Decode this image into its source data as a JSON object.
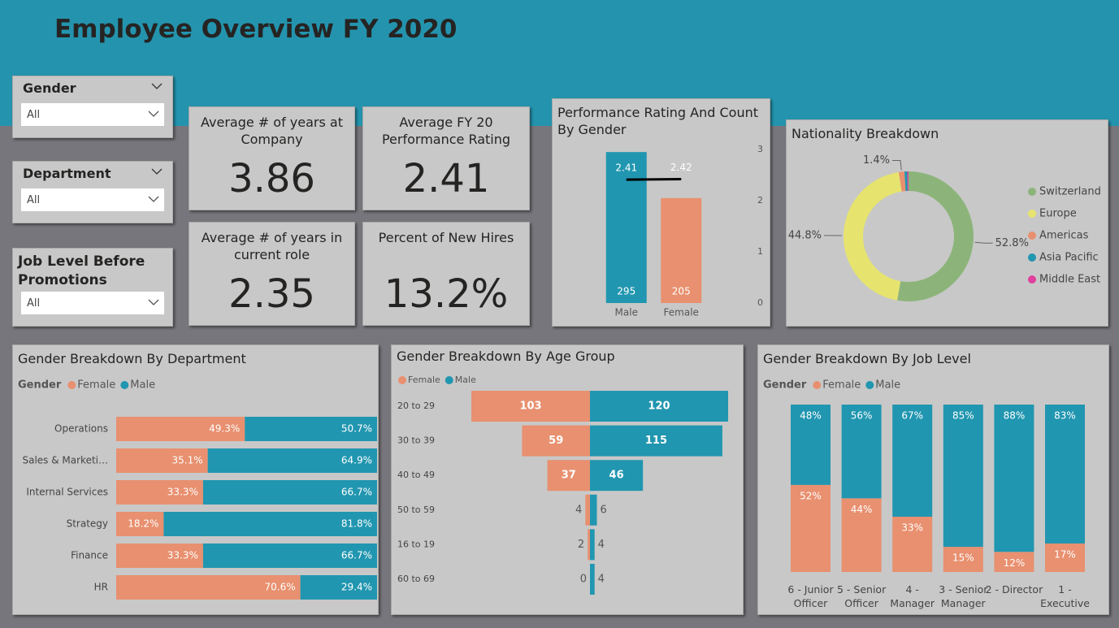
{
  "header": {
    "title": "Employee Overview FY 2020"
  },
  "slicers": [
    {
      "label": "Gender",
      "value": "All"
    },
    {
      "label": "Department",
      "value": "All"
    },
    {
      "label": "Job Level Before Promotions",
      "value": "All"
    }
  ],
  "kpis": [
    {
      "label": "Average # of years at Company",
      "value": "3.86"
    },
    {
      "label": "Average FY 20 Performance Rating",
      "value": "2.41"
    },
    {
      "label": "Average # of years in current role",
      "value": "2.35"
    },
    {
      "label": "Percent of New Hires",
      "value": "13.2%"
    }
  ],
  "chart_data": [
    {
      "type": "combo",
      "title": "Performance Rating And Count By Gender",
      "categories": [
        "Male",
        "Female"
      ],
      "series": [
        {
          "type": "bar",
          "color": "#2196b0",
          "values": [
            295,
            205
          ]
        },
        {
          "type": "line",
          "color": "#000000",
          "axis": "y2",
          "values": [
            2.41,
            2.42
          ]
        }
      ],
      "ylim": [
        0,
        300
      ],
      "y2lim": [
        0,
        3
      ],
      "y2ticks": [
        0,
        1,
        2,
        3
      ]
    },
    {
      "type": "donut",
      "title": "Nationality Breakdown",
      "categories": [
        "Switzerland",
        "Europe",
        "Americas",
        "Asia Pacific",
        "Middle East"
      ],
      "colors": [
        "#8cb47a",
        "#e6e46e",
        "#e8906f",
        "#2196b0",
        "#e0409e"
      ],
      "values": [
        52.8,
        44.8,
        1.4,
        0.7,
        0.3
      ],
      "value_labels": [
        "52.8%",
        "44.8%",
        "1.4%",
        null,
        null
      ]
    },
    {
      "type": "bar",
      "orientation": "horizontal",
      "stacked": true,
      "title": "Gender Breakdown By Department",
      "legend_title": "Gender",
      "categories": [
        "Operations",
        "Sales & Marketi…",
        "Internal Services",
        "Strategy",
        "Finance",
        "HR"
      ],
      "series": [
        {
          "name": "Female",
          "color": "#e8906f",
          "values": [
            49.3,
            35.1,
            33.3,
            18.2,
            33.3,
            70.6
          ],
          "value_labels": [
            "49.3%",
            "35.1%",
            "33.3%",
            "18.2%",
            "33.3%",
            "70.6%"
          ]
        },
        {
          "name": "Male",
          "color": "#2196b0",
          "values": [
            50.7,
            64.9,
            66.7,
            81.8,
            66.7,
            29.4
          ],
          "value_labels": [
            "50.7%",
            "64.9%",
            "66.7%",
            "81.8%",
            "66.7%",
            "29.4%"
          ]
        }
      ],
      "xlim": [
        0,
        100
      ]
    },
    {
      "type": "butterfly",
      "title": "Gender Breakdown By Age Group",
      "categories": [
        "20 to 29",
        "30 to 39",
        "40 to 49",
        "50 to 59",
        "16 to 19",
        "60 to 69"
      ],
      "series": [
        {
          "name": "Female",
          "color": "#e8906f",
          "values": [
            103,
            59,
            37,
            4,
            2,
            0
          ]
        },
        {
          "name": "Male",
          "color": "#2196b0",
          "values": [
            120,
            115,
            46,
            6,
            4,
            4
          ]
        }
      ],
      "xlim": [
        0,
        120
      ]
    },
    {
      "type": "bar",
      "orientation": "vertical",
      "stacked": true,
      "title": "Gender Breakdown By Job Level",
      "legend_title": "Gender",
      "categories": [
        "6 - Junior Officer",
        "5 - Senior Officer",
        "4 - Manager",
        "3 - Senior Manager",
        "2 - Director",
        "1 - Executive"
      ],
      "series": [
        {
          "name": "Female",
          "color": "#e8906f",
          "values": [
            52,
            44,
            33,
            15,
            12,
            17
          ],
          "value_labels": [
            "52%",
            "44%",
            "33%",
            "15%",
            "12%",
            "17%"
          ]
        },
        {
          "name": "Male",
          "color": "#2196b0",
          "values": [
            48,
            56,
            67,
            85,
            88,
            83
          ],
          "value_labels": [
            "48%",
            "56%",
            "67%",
            "85%",
            "88%",
            "83%"
          ]
        }
      ],
      "ylim": [
        0,
        100
      ]
    }
  ]
}
